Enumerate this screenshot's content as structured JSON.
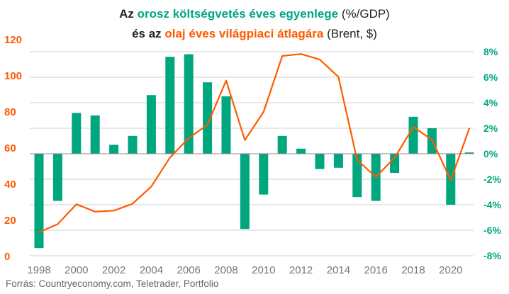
{
  "title": {
    "line1_a": "Az ",
    "line1_b": "orosz költségvetés éves egyenlege",
    "line1_c": " (%/GDP)",
    "line2_a": "és az ",
    "line2_b": "olaj éves világpiaci átlagára",
    "line2_c": " (Brent, $)"
  },
  "source": "Forrás: Countryeconomy.com, Teletrader, Portfolio",
  "colors": {
    "bars": "#00a67e",
    "line": "#ff5a00",
    "grid": "#d0d0d0",
    "zero": "#888888"
  },
  "chart_data": {
    "type": "bar+line",
    "x": [
      1998,
      1999,
      2000,
      2001,
      2002,
      2003,
      2004,
      2005,
      2006,
      2007,
      2008,
      2009,
      2010,
      2011,
      2012,
      2013,
      2014,
      2015,
      2016,
      2017,
      2018,
      2019,
      2020,
      2021
    ],
    "x_tick_labels": [
      "1998",
      "2000",
      "2002",
      "2004",
      "2006",
      "2008",
      "2010",
      "2012",
      "2014",
      "2016",
      "2018",
      "2020"
    ],
    "series": [
      {
        "name": "Orosz költségvetés éves egyenlege (%/GDP)",
        "type": "bar",
        "axis": "right",
        "values": [
          -7.4,
          -3.7,
          3.2,
          3.0,
          0.7,
          1.4,
          4.6,
          7.6,
          7.8,
          5.6,
          4.5,
          -5.9,
          -3.2,
          1.4,
          0.4,
          -1.2,
          -1.1,
          -3.4,
          -3.7,
          -1.5,
          2.9,
          2.0,
          -4.0,
          0.1
        ]
      },
      {
        "name": "Olaj éves világpiaci átlagára (Brent, $)",
        "type": "line",
        "axis": "left",
        "values": [
          13,
          17.5,
          28.5,
          24.4,
          25,
          28.8,
          38.3,
          54.4,
          65.1,
          72.5,
          97,
          64,
          79.6,
          110.6,
          111.7,
          108.6,
          99,
          53,
          43.6,
          54.2,
          71.3,
          64.2,
          41.8,
          70.7
        ]
      }
    ],
    "left_axis": {
      "ylim": [
        0,
        120
      ],
      "ticks": [
        "0",
        "20",
        "40",
        "60",
        "80",
        "100",
        "120"
      ]
    },
    "right_axis": {
      "ylim": [
        -8,
        8
      ],
      "ticks": [
        "-8%",
        "-6%",
        "-4%",
        "-2%",
        "0%",
        "2%",
        "4%",
        "6%",
        "8%"
      ]
    },
    "grid": true
  }
}
